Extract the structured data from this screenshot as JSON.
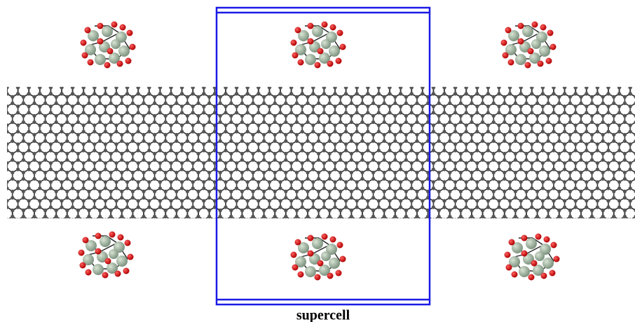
{
  "label": "supercell"
}
